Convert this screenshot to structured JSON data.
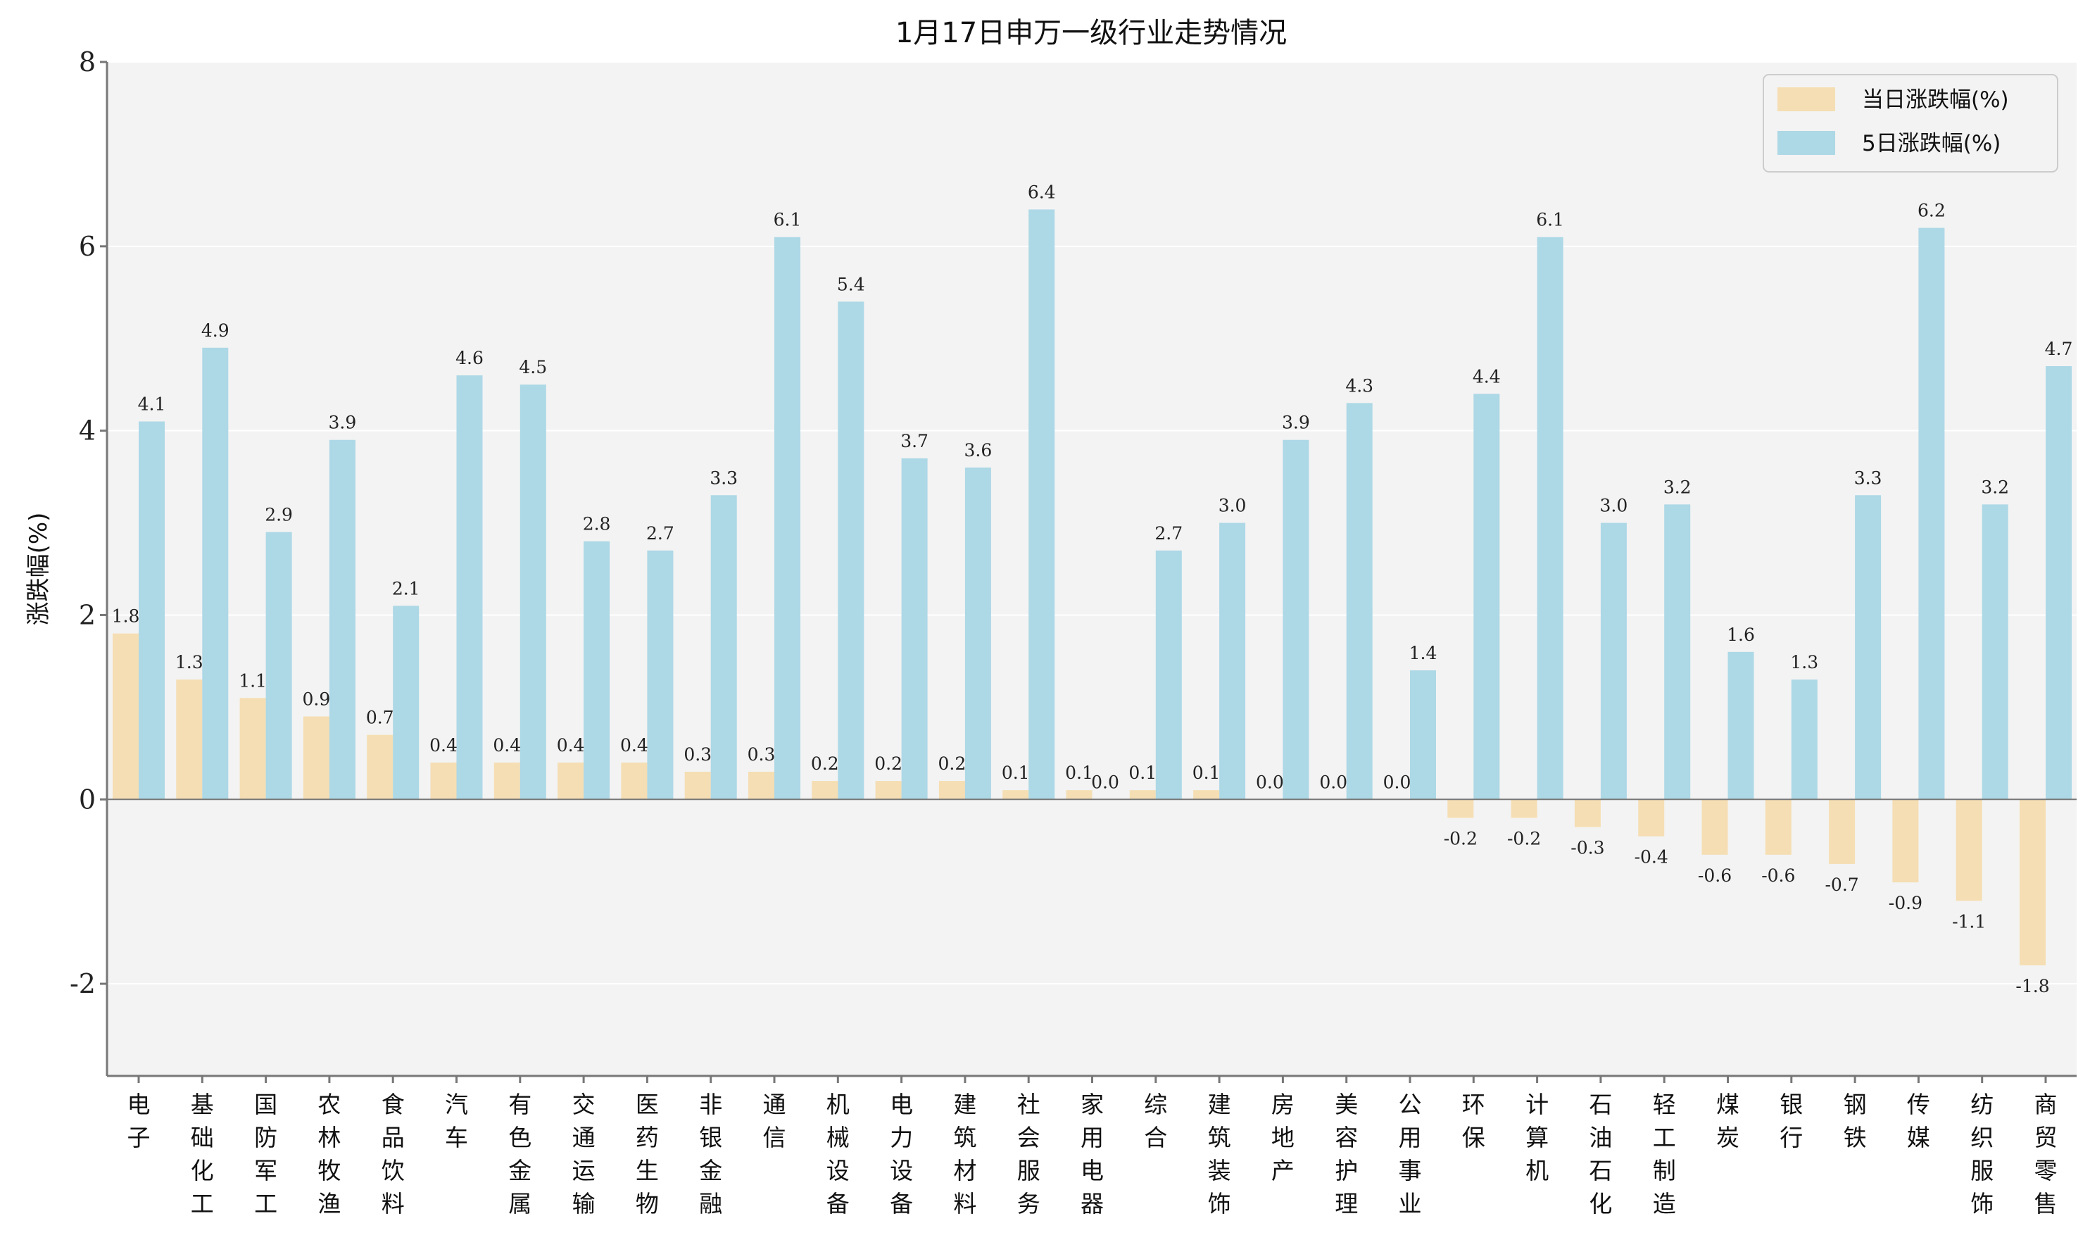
{
  "chart_data": {
    "type": "bar",
    "title": "1月17日申万一级行业走势情况",
    "xlabel": "",
    "ylabel": "涨跌幅(%)",
    "ylim": [
      -3,
      8
    ],
    "yticks": [
      -2,
      0,
      2,
      4,
      6,
      8
    ],
    "grid": true,
    "legend_position": "top-right",
    "colors": {
      "daily": "#f5deb3",
      "five_day": "#add8e6",
      "background": "#f3f3f3",
      "axis": "#777777",
      "grid": "#ffffff"
    },
    "categories": [
      "电子",
      "基础化工",
      "国防军工",
      "农林牧渔",
      "食品饮料",
      "汽车",
      "有色金属",
      "交通运输",
      "医药生物",
      "非银金融",
      "通信",
      "机械设备",
      "电力设备",
      "建筑材料",
      "社会服务",
      "家用电器",
      "综合",
      "建筑装饰",
      "房地产",
      "美容护理",
      "公用事业",
      "环保",
      "计算机",
      "石油石化",
      "轻工制造",
      "煤炭",
      "银行",
      "钢铁",
      "传媒",
      "纺织服饰",
      "商贸零售"
    ],
    "series": [
      {
        "name": "当日涨跌幅(%)",
        "color": "#f5deb3",
        "values": [
          1.8,
          1.3,
          1.1,
          0.9,
          0.7,
          0.4,
          0.4,
          0.4,
          0.4,
          0.3,
          0.3,
          0.2,
          0.2,
          0.2,
          0.1,
          0.1,
          0.1,
          0.1,
          0.0,
          0.0,
          0.0,
          -0.2,
          -0.2,
          -0.3,
          -0.4,
          -0.6,
          -0.6,
          -0.7,
          -0.9,
          -1.1,
          -1.8
        ]
      },
      {
        "name": "5日涨跌幅(%)",
        "color": "#add8e6",
        "values": [
          4.1,
          4.9,
          2.9,
          3.9,
          2.1,
          4.6,
          4.5,
          2.8,
          2.7,
          3.3,
          6.1,
          5.4,
          3.7,
          3.6,
          6.4,
          0.0,
          2.7,
          3.0,
          3.9,
          4.3,
          1.4,
          4.4,
          6.1,
          3.0,
          3.2,
          1.6,
          1.3,
          3.3,
          6.2,
          3.2,
          4.7
        ]
      }
    ]
  }
}
